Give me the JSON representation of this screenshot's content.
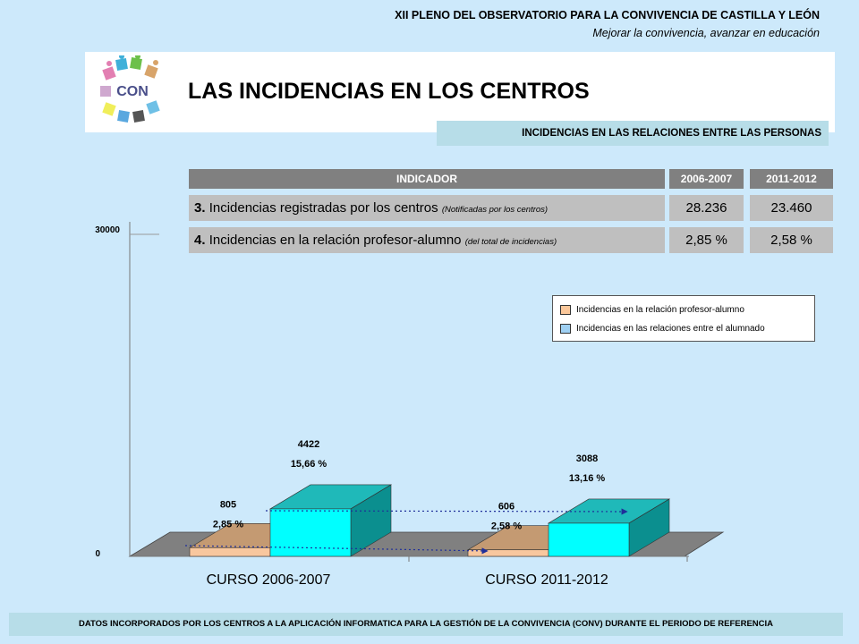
{
  "header": {
    "event": "XII PLENO DEL OBSERVATORIO PARA LA CONVIVENCIA DE CASTILLA Y LEÓN",
    "tagline": "Mejorar la convivencia, avanzar en educación"
  },
  "logo": {
    "text": "CON"
  },
  "title": "LAS INCIDENCIAS EN LOS CENTROS",
  "subtitle": "INCIDENCIAS EN LAS RELACIONES ENTRE LAS PERSONAS",
  "table": {
    "headers": [
      "INDICADOR",
      "2006-2007",
      "2011-2012"
    ],
    "rows": [
      {
        "num": "3.",
        "label": "Incidencias registradas por los centros",
        "note": "(Notificadas  por los centros)",
        "v1": "28.236",
        "v2": "23.460"
      },
      {
        "num": "4.",
        "label": "Incidencias en la relación profesor-alumno",
        "note": "(del total de incidencias)",
        "v1": "2,85 %",
        "v2": "2,58 %"
      }
    ]
  },
  "chart_data": {
    "type": "bar",
    "categories": [
      "CURSO 2006-2007",
      "CURSO 2011-2012"
    ],
    "ylim": [
      0,
      30000
    ],
    "yticks": [
      "0",
      "30000"
    ],
    "series": [
      {
        "name": "Incidencias en la relación profesor-alumno",
        "color": "#f8c79e",
        "values": [
          805,
          606
        ],
        "value_labels": [
          "805",
          "606"
        ],
        "pct_labels": [
          "2,85 %",
          "2,58 %"
        ]
      },
      {
        "name": "Incidencias en las relaciones entre el alumnado",
        "color": "#00ffff",
        "values": [
          4422,
          3088
        ],
        "value_labels": [
          "4422",
          "3088"
        ],
        "pct_labels": [
          "15,66 %",
          "13,16 %"
        ]
      }
    ],
    "legend_swatch_colors": [
      "#fbc89b",
      "#9fd0f3"
    ]
  },
  "footer": "DATOS INCORPORADOS POR LOS CENTROS A LA APLICACIÓN INFORMATICA PARA LA GESTIÓN DE LA CONVIVENCIA (CONV) DURANTE EL PERIODO DE REFERENCIA"
}
